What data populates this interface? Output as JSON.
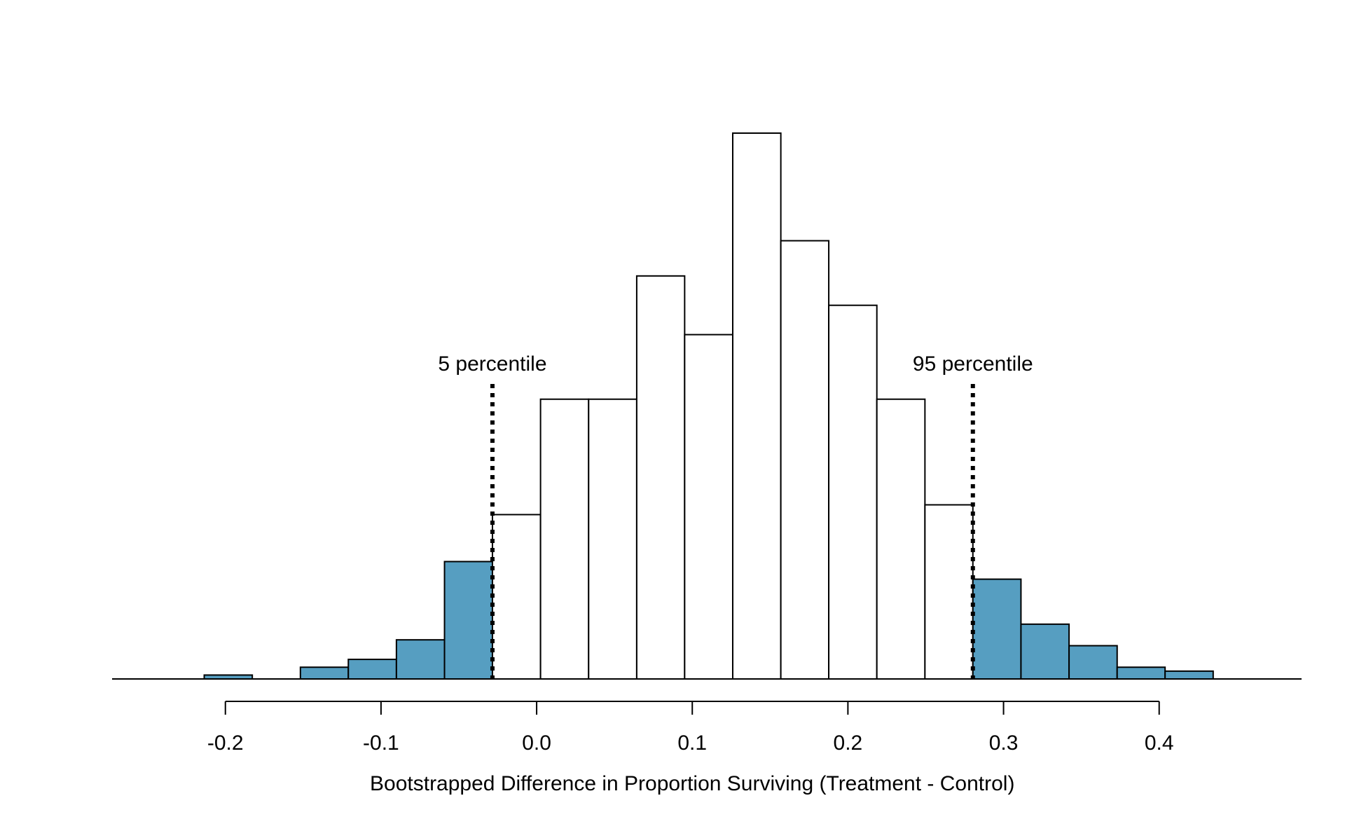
{
  "chart_data": {
    "type": "bar",
    "subtype": "histogram",
    "title": "",
    "xlabel": "Bootstrapped Difference in Proportion Surviving (Treatment - Control)",
    "ylabel": "",
    "xlim": [
      -0.2728,
      0.4915
    ],
    "ylim": [
      0,
      28
    ],
    "x_ticks": [
      -0.2,
      -0.1,
      0.0,
      0.1,
      0.2,
      0.3,
      0.4
    ],
    "x_tick_labels": [
      "-0.2",
      "-0.1",
      "0.0",
      "0.1",
      "0.2",
      "0.3",
      "0.4"
    ],
    "grid": false,
    "legend": "none",
    "bin_edges": [
      -0.2136,
      -0.1827,
      -0.1518,
      -0.121,
      -0.0901,
      -0.0592,
      -0.0284,
      0.0025,
      0.0334,
      0.0643,
      0.0951,
      0.126,
      0.1569,
      0.1877,
      0.2186,
      0.2495,
      0.2803,
      0.3112,
      0.3421,
      0.373,
      0.4038,
      0.4347
    ],
    "bin_counts": [
      0.2,
      0,
      0.6,
      1.0,
      2.0,
      6.0,
      8.4,
      14.3,
      14.3,
      20.6,
      17.6,
      27.9,
      22.4,
      19.1,
      14.3,
      8.9,
      5.1,
      2.8,
      1.7,
      0.6,
      0.4
    ],
    "percentiles": [
      {
        "label": "5 percentile",
        "x": -0.0284
      },
      {
        "label": "95 percentile",
        "x": 0.2803
      }
    ],
    "colors": {
      "tail": "#569EC1",
      "center": "#ffffff",
      "outline": "#000000"
    }
  }
}
